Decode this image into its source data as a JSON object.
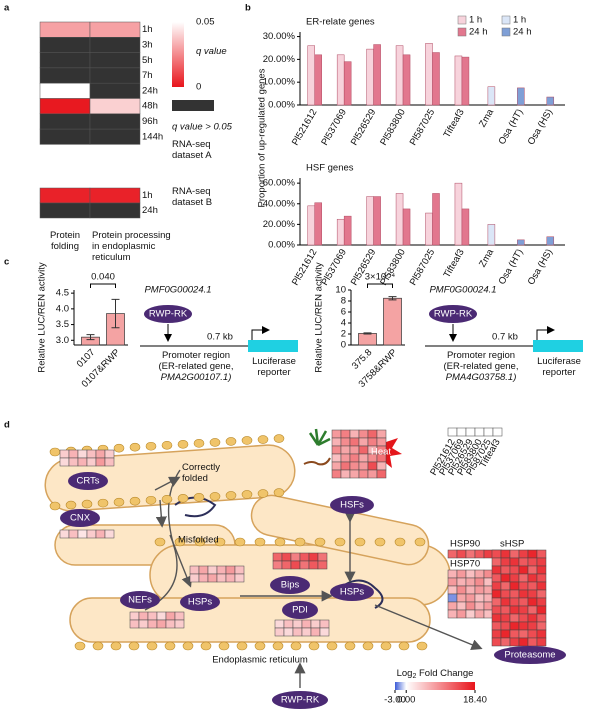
{
  "panel_labels": [
    "a",
    "b",
    "c",
    "d"
  ],
  "chart_data": [
    {
      "type": "heatmap",
      "columns": [
        "Protein folding",
        "Protein processing in endoplasmic reticulum"
      ],
      "blocks": [
        {
          "label": "RNA-seq dataset A",
          "rows": [
            "1h",
            "3h",
            "5h",
            "7h",
            "24h",
            "48h",
            "96h",
            "144h"
          ],
          "values": [
            [
              0.03,
              0.03
            ],
            [
              null,
              null
            ],
            [
              null,
              null
            ],
            [
              null,
              null
            ],
            [
              0.05,
              null
            ],
            [
              0.001,
              0.04
            ],
            [
              null,
              null
            ],
            [
              null,
              null
            ]
          ]
        },
        {
          "label": "RNA-seq dataset B",
          "rows": [
            "1h",
            "24h"
          ],
          "values": [
            [
              0.003,
              0.003
            ],
            [
              null,
              null
            ]
          ]
        }
      ],
      "zlim": [
        0,
        0.05
      ],
      "color_low": "#e8141b",
      "color_high": "#ffffff",
      "colorbar_label": "q value",
      "colorbar_ticks": [
        0.05,
        0
      ],
      "na_color": "#333333",
      "na_label": "q value > 0.05"
    },
    {
      "type": "bar",
      "title": "ER-relate genes",
      "ylabel": "Proportion of up-regulated genes",
      "categories": [
        "Pl521612",
        "Pl537069",
        "Pl526529",
        "Pl583800",
        "Pl587025",
        "Tifteaf3",
        "Zma",
        "Osa (HT)",
        "Osa (HS)"
      ],
      "series": [
        {
          "name": "1 h",
          "color": "#f7d3dc",
          "values": [
            26,
            22,
            24.5,
            26,
            27,
            21.5,
            null,
            null,
            null
          ]
        },
        {
          "name": "24 h",
          "color": "#e2778e",
          "values": [
            22,
            19,
            26.5,
            22,
            23,
            21,
            null,
            null,
            null
          ]
        },
        {
          "name": "1 h",
          "color": "#dbe6f7",
          "values": [
            null,
            null,
            null,
            null,
            null,
            null,
            8,
            null,
            null
          ]
        },
        {
          "name": "24 h",
          "color": "#7f9fd6",
          "values": [
            null,
            null,
            null,
            null,
            null,
            null,
            null,
            7.5,
            3.5
          ]
        }
      ],
      "ylim": [
        0,
        32
      ],
      "yticks": [
        {
          "value": 0,
          "label": "0.00%"
        },
        {
          "value": 10,
          "label": "10.00%"
        },
        {
          "value": 20,
          "label": "20.00%"
        },
        {
          "value": 30,
          "label": "30.00%"
        }
      ],
      "legend": "top-right"
    },
    {
      "type": "bar",
      "title": "HSF genes",
      "categories": [
        "Pl521612",
        "Pl537069",
        "Pl526529",
        "Pl583800",
        "Pl587025",
        "Tifteaf3",
        "Zma",
        "Osa (HT)",
        "Osa (HS)"
      ],
      "series": [
        {
          "color": "#f7d3dc",
          "values": [
            38,
            25,
            47,
            50,
            31,
            60,
            null,
            null,
            null
          ]
        },
        {
          "color": "#e2778e",
          "values": [
            41,
            28,
            47,
            35,
            50,
            35,
            null,
            null,
            null
          ]
        },
        {
          "color": "#dbe6f7",
          "values": [
            null,
            null,
            null,
            null,
            null,
            null,
            20,
            null,
            null
          ]
        },
        {
          "color": "#7f9fd6",
          "values": [
            null,
            null,
            null,
            null,
            null,
            null,
            null,
            5,
            8
          ]
        }
      ],
      "ylim": [
        0,
        65
      ],
      "yticks": [
        {
          "value": 0,
          "label": "0.00%"
        },
        {
          "value": 20,
          "label": "20.00%"
        },
        {
          "value": 40,
          "label": "40.00%"
        },
        {
          "value": 60,
          "label": "60.00%"
        }
      ]
    },
    {
      "type": "bar",
      "ylabel": "Relative LUC/REN activity",
      "categories": [
        "0107",
        "0107&RWP"
      ],
      "values": [
        3.1,
        3.85
      ],
      "errors": [
        0.08,
        0.45
      ],
      "color": "#f4a3a3",
      "ylim": [
        2.85,
        4.6
      ],
      "yticks": [
        {
          "value": 3,
          "label": "3.0"
        },
        {
          "value": 3.5,
          "label": "3.5"
        },
        {
          "value": 4,
          "label": "4.0"
        },
        {
          "value": 4.5,
          "label": "4.5"
        }
      ],
      "annotation": "0.040"
    },
    {
      "type": "bar",
      "ylabel": "Relative LUC/REN activity",
      "categories": [
        "375.8",
        "3758&RWP"
      ],
      "values": [
        2.1,
        8.5
      ],
      "errors": [
        0.1,
        0.3
      ],
      "color": "#f4a3a3",
      "ylim": [
        0,
        10
      ],
      "yticks": [
        0,
        2,
        4,
        6,
        8,
        10
      ],
      "annotation": "3×10⁻⁴"
    }
  ],
  "constructs": [
    {
      "regulator": "PMF0G00024.1",
      "factor": "RWP-RK",
      "distance": "0.7 kb",
      "promoter": "Promoter region",
      "gene_note": "(ER-related gene,",
      "gene": "PMA2G00107.1)",
      "reporter": "Luciferase reporter"
    },
    {
      "regulator": "PMF0G00024.1",
      "factor": "RWP-RK",
      "distance": "0.7 kb",
      "promoter": "Promoter region",
      "gene_note": "(ER-related gene,",
      "gene": "PMA4G03758.1)",
      "reporter": "Luciferase reporter"
    }
  ],
  "diagram_d": {
    "nodes": [
      "CRTs",
      "CNX",
      "NEFs",
      "HSPs",
      "Bips",
      "PDI",
      "HSFs",
      "HSPs",
      "Proteasome",
      "RWP-RK"
    ],
    "texts": {
      "correct": "Correctly folded",
      "misfolded": "Misfolded",
      "er": "Endoplasmic reticulum",
      "heat": "Heat"
    },
    "columns": [
      "Pl521612",
      "Pl537069",
      "Pl526529",
      "Pl583800",
      "Pl587025",
      "Tifteaf3"
    ],
    "heatmaps": [
      {
        "values": [
          [
            4,
            6,
            3,
            5,
            7,
            4
          ],
          [
            3,
            5,
            6,
            4,
            8,
            5
          ]
        ]
      },
      {
        "values": [
          [
            3,
            5,
            2,
            4,
            6,
            3
          ]
        ]
      },
      {
        "values": [
          [
            8,
            10,
            6,
            9,
            12,
            7
          ],
          [
            6,
            9,
            11,
            7,
            10,
            8
          ],
          [
            9,
            7,
            8,
            12,
            6,
            10
          ],
          [
            5,
            8,
            10,
            7,
            9,
            11
          ],
          [
            7,
            11,
            9,
            8,
            14,
            6
          ],
          [
            10,
            6,
            7,
            9,
            8,
            12
          ]
        ]
      },
      {
        "values": [
          [
            5,
            7,
            4,
            6,
            8,
            5
          ],
          [
            4,
            6,
            7,
            5,
            6,
            4
          ]
        ]
      },
      {
        "values": [
          [
            12,
            14,
            10,
            13,
            15,
            11
          ],
          [
            10,
            12,
            14,
            11,
            13,
            12
          ]
        ]
      },
      {
        "values": [
          [
            4,
            6,
            5,
            3,
            7,
            5
          ],
          [
            5,
            4,
            6,
            7,
            5,
            4
          ]
        ]
      },
      {
        "values": [
          [
            3,
            5,
            4,
            6,
            4,
            5
          ],
          [
            4,
            3,
            5,
            4,
            6,
            3
          ]
        ]
      },
      {
        "label": "HSP90",
        "values": [
          [
            12,
            14,
            11,
            13,
            15,
            12
          ]
        ]
      },
      {
        "label": "HSP70",
        "values": [
          [
            6,
            8,
            5,
            7,
            9,
            6
          ],
          [
            8,
            6,
            7,
            9,
            5,
            8
          ],
          [
            5,
            9,
            6,
            8,
            7,
            4
          ],
          [
            -2,
            7,
            8,
            5,
            6,
            9
          ],
          [
            7,
            5,
            9,
            6,
            8,
            7
          ],
          [
            6,
            8,
            4,
            7,
            5,
            6
          ]
        ]
      },
      {
        "label": "sHSP",
        "values": [
          [
            14,
            16,
            12,
            15,
            17,
            13
          ],
          [
            12,
            15,
            16,
            13,
            14,
            15
          ],
          [
            16,
            13,
            14,
            17,
            12,
            16
          ],
          [
            13,
            17,
            15,
            12,
            16,
            14
          ],
          [
            15,
            12,
            17,
            14,
            13,
            16
          ],
          [
            17,
            14,
            13,
            16,
            15,
            12
          ],
          [
            12,
            16,
            14,
            13,
            17,
            15
          ],
          [
            14,
            13,
            16,
            15,
            12,
            17
          ],
          [
            16,
            15,
            12,
            14,
            16,
            13
          ],
          [
            13,
            14,
            17,
            16,
            15,
            12
          ],
          [
            15,
            17,
            13,
            12,
            14,
            16
          ],
          [
            14,
            12,
            15,
            17,
            13,
            15
          ]
        ]
      }
    ],
    "colorbar": {
      "title_prefix": "Log",
      "title_sub": "2",
      "title_suffix": " Fold Change",
      "zlim": [
        -3,
        18.4
      ],
      "colors": [
        "#3b5bd6",
        "#ffffff",
        "#e8141b"
      ],
      "ticks": [
        {
          "value": -3,
          "label": "-3.00"
        },
        {
          "value": 0,
          "label": "0.00"
        },
        {
          "value": 18.4,
          "label": "18.40"
        }
      ]
    }
  }
}
